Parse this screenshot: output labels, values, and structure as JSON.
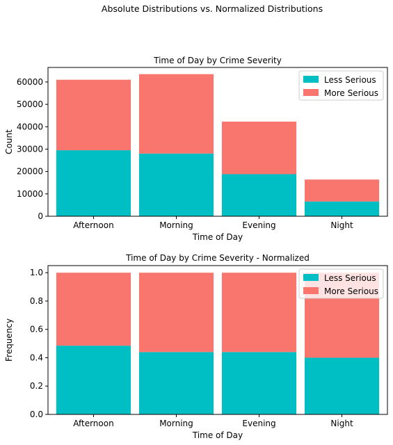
{
  "figure_title": "Absolute Distributions vs. Normalized Distributions",
  "colors": {
    "less": "#00bfc4",
    "more": "#f8766d"
  },
  "chart_data": [
    {
      "type": "bar",
      "stacked": true,
      "title": "Time of Day by Crime Severity",
      "xlabel": "Time of Day",
      "ylabel": "Count",
      "categories": [
        "Afternoon",
        "Morning",
        "Evening",
        "Night"
      ],
      "series": [
        {
          "name": "Less Serious",
          "color": "#00bfc4",
          "values": [
            29500,
            28000,
            18800,
            6600
          ]
        },
        {
          "name": "More Serious",
          "color": "#f8766d",
          "values": [
            31500,
            35500,
            23500,
            9800
          ]
        }
      ],
      "ylim": [
        0,
        66500
      ],
      "yticks": [
        0,
        10000,
        20000,
        30000,
        40000,
        50000,
        60000
      ],
      "ytick_labels": [
        "0",
        "10000",
        "20000",
        "30000",
        "40000",
        "50000",
        "60000"
      ],
      "legend": "top-right",
      "grid": false
    },
    {
      "type": "bar",
      "stacked": true,
      "title": "Time of Day by Crime Severity - Normalized",
      "xlabel": "Time of Day",
      "ylabel": "Frequency",
      "categories": [
        "Afternoon",
        "Morning",
        "Evening",
        "Night"
      ],
      "series": [
        {
          "name": "Less Serious",
          "color": "#00bfc4",
          "values": [
            0.485,
            0.44,
            0.44,
            0.4
          ]
        },
        {
          "name": "More Serious",
          "color": "#f8766d",
          "values": [
            0.515,
            0.56,
            0.56,
            0.6
          ]
        }
      ],
      "ylim": [
        0,
        1.05
      ],
      "yticks": [
        0,
        0.2,
        0.4,
        0.6,
        0.8,
        1.0
      ],
      "ytick_labels": [
        "0.0",
        "0.2",
        "0.4",
        "0.6",
        "0.8",
        "1.0"
      ],
      "legend": "top-right",
      "grid": false
    }
  ]
}
